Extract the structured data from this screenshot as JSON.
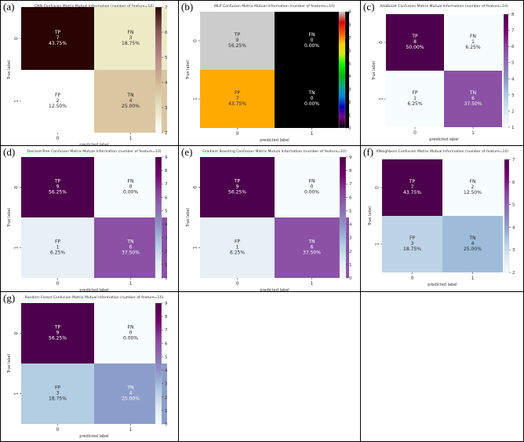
{
  "chart_data": [
    {
      "panel": "(a)",
      "type": "heatmap",
      "title": "CNN Confusion Matrix Mutual Information (number of feature=10)",
      "xlabel": "predicted label",
      "ylabel": "True label",
      "xticks": [
        "0",
        "1"
      ],
      "yticks": [
        "0",
        "1"
      ],
      "cells": [
        [
          {
            "name": "TP",
            "value": 7,
            "percent": "43.75%"
          },
          {
            "name": "FN",
            "value": 3,
            "percent": "18.75%"
          }
        ],
        [
          {
            "name": "FP",
            "value": 2,
            "percent": "12.50%"
          },
          {
            "name": "TN",
            "value": 4,
            "percent": "25.00%"
          }
        ]
      ],
      "colormap": "pink",
      "cell_colors": [
        [
          "#2a0303",
          "#ecebc5"
        ],
        [
          "#ffffff",
          "#dbc6a2"
        ]
      ],
      "text_colors": [
        [
          "#ffffff",
          "#262626"
        ],
        [
          "#262626",
          "#262626"
        ]
      ],
      "colorbar": {
        "min": 2,
        "max": 7,
        "ticks": [
          2,
          3,
          4,
          5,
          6,
          7
        ],
        "colors": [
          "#ffffff",
          "#e6e3be",
          "#d2b892",
          "#b98888",
          "#8e5a5a",
          "#2a0303"
        ]
      }
    },
    {
      "panel": "(b)",
      "type": "heatmap",
      "title": "MLP Confusion Matrix Mutual Information (number of features=10)",
      "xlabel": "predicted label",
      "ylabel": "True label",
      "xticks": [
        "0",
        "1"
      ],
      "yticks": [
        "0",
        "1"
      ],
      "cells": [
        [
          {
            "name": "TP",
            "value": 9,
            "percent": "56.25%"
          },
          {
            "name": "FN",
            "value": 0,
            "percent": "0.00%"
          }
        ],
        [
          {
            "name": "FP",
            "value": 7,
            "percent": "43.75%"
          },
          {
            "name": "TN",
            "value": 0,
            "percent": "0.00%"
          }
        ]
      ],
      "colormap": "nipy_spectral",
      "cell_colors": [
        [
          "#cccccc",
          "#000000"
        ],
        [
          "#ffaa00",
          "#000000"
        ]
      ],
      "text_colors": [
        [
          "#262626",
          "#ffffff"
        ],
        [
          "#262626",
          "#ffffff"
        ]
      ],
      "colorbar": {
        "min": 0,
        "max": 9,
        "ticks": [
          0,
          1,
          2,
          3,
          4,
          5,
          6,
          7,
          8,
          9
        ],
        "colors": [
          "#000000",
          "#7a0088",
          "#0000c8",
          "#0088dd",
          "#00aa88",
          "#00bb00",
          "#00ff00",
          "#c8f000",
          "#ffcc00",
          "#ff5500",
          "#dd0000",
          "#cccccc"
        ]
      }
    },
    {
      "panel": "(c)",
      "type": "heatmap",
      "title": "AdaBoost Confusion Matrix Mutual Information (number of feature=10)",
      "xlabel": "predicted label",
      "ylabel": "True label",
      "xticks": [
        "0",
        "1"
      ],
      "yticks": [
        "0",
        "1"
      ],
      "cells": [
        [
          {
            "name": "TP",
            "value": 8,
            "percent": "50.00%"
          },
          {
            "name": "FN",
            "value": 1,
            "percent": "6.25%"
          }
        ],
        [
          {
            "name": "FP",
            "value": 1,
            "percent": "6.25%"
          },
          {
            "name": "TN",
            "value": 6,
            "percent": "37.50%"
          }
        ]
      ],
      "colormap": "BuPu",
      "cell_colors": [
        [
          "#4d004b",
          "#f7fcfd"
        ],
        [
          "#f7fcfd",
          "#8a51a5"
        ]
      ],
      "text_colors": [
        [
          "#ffffff",
          "#262626"
        ],
        [
          "#262626",
          "#ffffff"
        ]
      ],
      "colorbar": {
        "min": 1,
        "max": 8,
        "ticks": [
          1,
          2,
          3,
          4,
          5,
          6,
          7,
          8
        ],
        "colors": [
          "#f7fcfd",
          "#dbe9f2",
          "#b0c9e1",
          "#8c96c6",
          "#8c6bb1",
          "#88419d",
          "#6e016b",
          "#4d004b"
        ]
      }
    },
    {
      "panel": "(d)",
      "type": "heatmap",
      "title": "DecisionTree Confusion Matrix Mutual Information (number of feature=10)",
      "xlabel": "predicted label",
      "ylabel": "True label",
      "xticks": [
        "0",
        "1"
      ],
      "yticks": [
        "0",
        "1"
      ],
      "cells": [
        [
          {
            "name": "TP",
            "value": 9,
            "percent": "56.25%"
          },
          {
            "name": "FN",
            "value": 0,
            "percent": "0.00%"
          }
        ],
        [
          {
            "name": "FP",
            "value": 1,
            "percent": "6.25%"
          },
          {
            "name": "TN",
            "value": 6,
            "percent": "37.50%"
          }
        ]
      ],
      "colormap": "BuPu",
      "cell_colors": [
        [
          "#4d004b",
          "#f7fcfd"
        ],
        [
          "#e6f0f6",
          "#8a51a5"
        ]
      ],
      "text_colors": [
        [
          "#ffffff",
          "#262626"
        ],
        [
          "#262626",
          "#ffffff"
        ]
      ],
      "colorbar": {
        "min": 0,
        "max": 9,
        "ticks": [
          0,
          1,
          2,
          3,
          4,
          5,
          6,
          7,
          8,
          9
        ],
        "colors": [
          "#f7fcfd",
          "#dbe9f2",
          "#b0c9e1",
          "#8c96c6",
          "#8c6bb1",
          "#88419d",
          "#6e016b",
          "#4d004b"
        ]
      }
    },
    {
      "panel": "(e)",
      "type": "heatmap",
      "title": "Gradient Boosting Confusion Matrix Mutual Information (number of feature=10)",
      "xlabel": "predicted label",
      "ylabel": "True label",
      "xticks": [
        "0",
        "1"
      ],
      "yticks": [
        "0",
        "1"
      ],
      "cells": [
        [
          {
            "name": "TP",
            "value": 9,
            "percent": "56.25%"
          },
          {
            "name": "FN",
            "value": 0,
            "percent": "0.00%"
          }
        ],
        [
          {
            "name": "FP",
            "value": 1,
            "percent": "6.25%"
          },
          {
            "name": "TN",
            "value": 6,
            "percent": "37.50%"
          }
        ]
      ],
      "colormap": "BuPu",
      "cell_colors": [
        [
          "#4d004b",
          "#f7fcfd"
        ],
        [
          "#e6f0f6",
          "#8a51a5"
        ]
      ],
      "text_colors": [
        [
          "#ffffff",
          "#262626"
        ],
        [
          "#262626",
          "#ffffff"
        ]
      ],
      "colorbar": {
        "min": 0,
        "max": 9,
        "ticks": [
          0,
          1,
          2,
          3,
          4,
          5,
          6,
          7,
          8,
          9
        ],
        "colors": [
          "#f7fcfd",
          "#dbe9f2",
          "#b0c9e1",
          "#8c96c6",
          "#8c6bb1",
          "#88419d",
          "#6e016b",
          "#4d004b"
        ]
      }
    },
    {
      "panel": "(f)",
      "type": "heatmap",
      "title": "KNeighbors Confusion Matrix Mutual Information (number of feature=10)",
      "xlabel": "predicted label",
      "ylabel": "True label",
      "xticks": [
        "0",
        "1"
      ],
      "yticks": [
        "0",
        "1"
      ],
      "cells": [
        [
          {
            "name": "TP",
            "value": 7,
            "percent": "43.75%"
          },
          {
            "name": "FN",
            "value": 2,
            "percent": "12.50%"
          }
        ],
        [
          {
            "name": "FP",
            "value": 3,
            "percent": "18.75%"
          },
          {
            "name": "TN",
            "value": 4,
            "percent": "25.00%"
          }
        ]
      ],
      "colormap": "BuPu",
      "cell_colors": [
        [
          "#4d004b",
          "#f7fcfd"
        ],
        [
          "#bfd3e6",
          "#9ebcda"
        ]
      ],
      "text_colors": [
        [
          "#ffffff",
          "#262626"
        ],
        [
          "#262626",
          "#262626"
        ]
      ],
      "colorbar": {
        "min": 2,
        "max": 7,
        "ticks": [
          2,
          3,
          4,
          5,
          6,
          7
        ],
        "colors": [
          "#f7fcfd",
          "#dbe9f2",
          "#b0c9e1",
          "#8c96c6",
          "#8c6bb1",
          "#88419d",
          "#6e016b",
          "#4d004b"
        ]
      }
    },
    {
      "panel": "(g)",
      "type": "heatmap",
      "title": "Random Forest Confusion Matrix Mutual Information (number of feature=10)",
      "xlabel": "predicted label",
      "ylabel": "True label",
      "xticks": [
        "0",
        "1"
      ],
      "yticks": [
        "0",
        "1"
      ],
      "cells": [
        [
          {
            "name": "TP",
            "value": 9,
            "percent": "56.25%"
          },
          {
            "name": "FN",
            "value": 0,
            "percent": "0.00%"
          }
        ],
        [
          {
            "name": "FP",
            "value": 3,
            "percent": "18.75%"
          },
          {
            "name": "TN",
            "value": 4,
            "percent": "25.00%"
          }
        ]
      ],
      "colormap": "BuPu",
      "cell_colors": [
        [
          "#4d004b",
          "#f7fcfd"
        ],
        [
          "#b3cde3",
          "#8c9dc9"
        ]
      ],
      "text_colors": [
        [
          "#ffffff",
          "#262626"
        ],
        [
          "#262626",
          "#ffffff"
        ]
      ],
      "colorbar": {
        "min": 0,
        "max": 9,
        "ticks": [
          0,
          1,
          2,
          3,
          4,
          5,
          6,
          7,
          8,
          9
        ],
        "colors": [
          "#f7fcfd",
          "#dbe9f2",
          "#b0c9e1",
          "#8c96c6",
          "#8c6bb1",
          "#88419d",
          "#6e016b",
          "#4d004b"
        ]
      }
    }
  ]
}
